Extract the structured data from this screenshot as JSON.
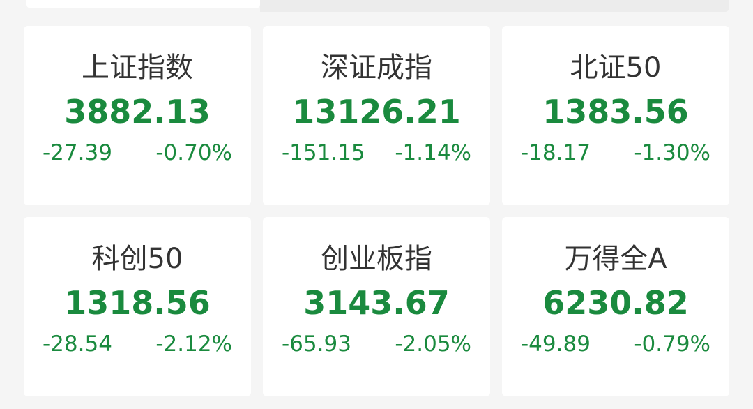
{
  "colors": {
    "down": "#1a8a3e",
    "name": "#333333"
  },
  "indices": [
    {
      "name": "上证指数",
      "value": "3882.13",
      "change": "-27.39",
      "pct": "-0.70%"
    },
    {
      "name": "深证成指",
      "value": "13126.21",
      "change": "-151.15",
      "pct": "-1.14%"
    },
    {
      "name": "北证50",
      "value": "1383.56",
      "change": "-18.17",
      "pct": "-1.30%"
    },
    {
      "name": "科创50",
      "value": "1318.56",
      "change": "-28.54",
      "pct": "-2.12%"
    },
    {
      "name": "创业板指",
      "value": "3143.67",
      "change": "-65.93",
      "pct": "-2.05%"
    },
    {
      "name": "万得全A",
      "value": "6230.82",
      "change": "-49.89",
      "pct": "-0.79%"
    }
  ]
}
